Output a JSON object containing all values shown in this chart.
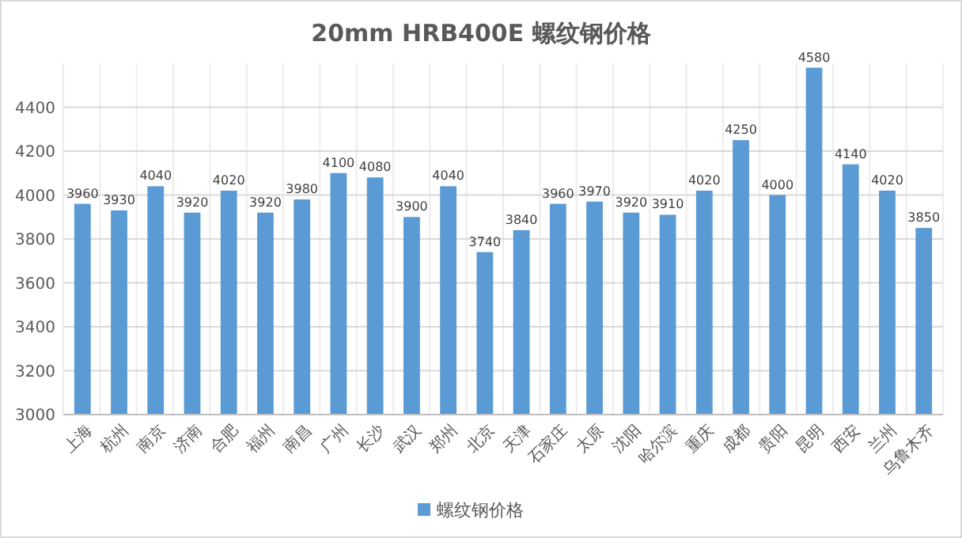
{
  "chart_data": {
    "type": "bar",
    "title": "20mm HRB400E 螺纹钢价格",
    "categories": [
      "上海",
      "杭州",
      "南京",
      "济南",
      "合肥",
      "福州",
      "南昌",
      "广州",
      "长沙",
      "武汉",
      "郑州",
      "北京",
      "天津",
      "石家庄",
      "太原",
      "沈阳",
      "哈尔滨",
      "重庆",
      "成都",
      "贵阳",
      "昆明",
      "西安",
      "兰州",
      "乌鲁木齐"
    ],
    "series": [
      {
        "name": "螺纹钢价格",
        "color": "#5b9bd5",
        "values": [
          3960,
          3930,
          4040,
          3920,
          4020,
          3920,
          3980,
          4100,
          4080,
          3900,
          4040,
          3740,
          3840,
          3960,
          3970,
          3920,
          3910,
          4020,
          4250,
          4000,
          4580,
          4140,
          4020,
          3850
        ]
      }
    ],
    "ylim": [
      3000,
      4600
    ],
    "yticks": [
      3000,
      3200,
      3400,
      3600,
      3800,
      4000,
      4200,
      4400
    ],
    "grid": true,
    "legend": "bottom",
    "data_labels": true
  }
}
